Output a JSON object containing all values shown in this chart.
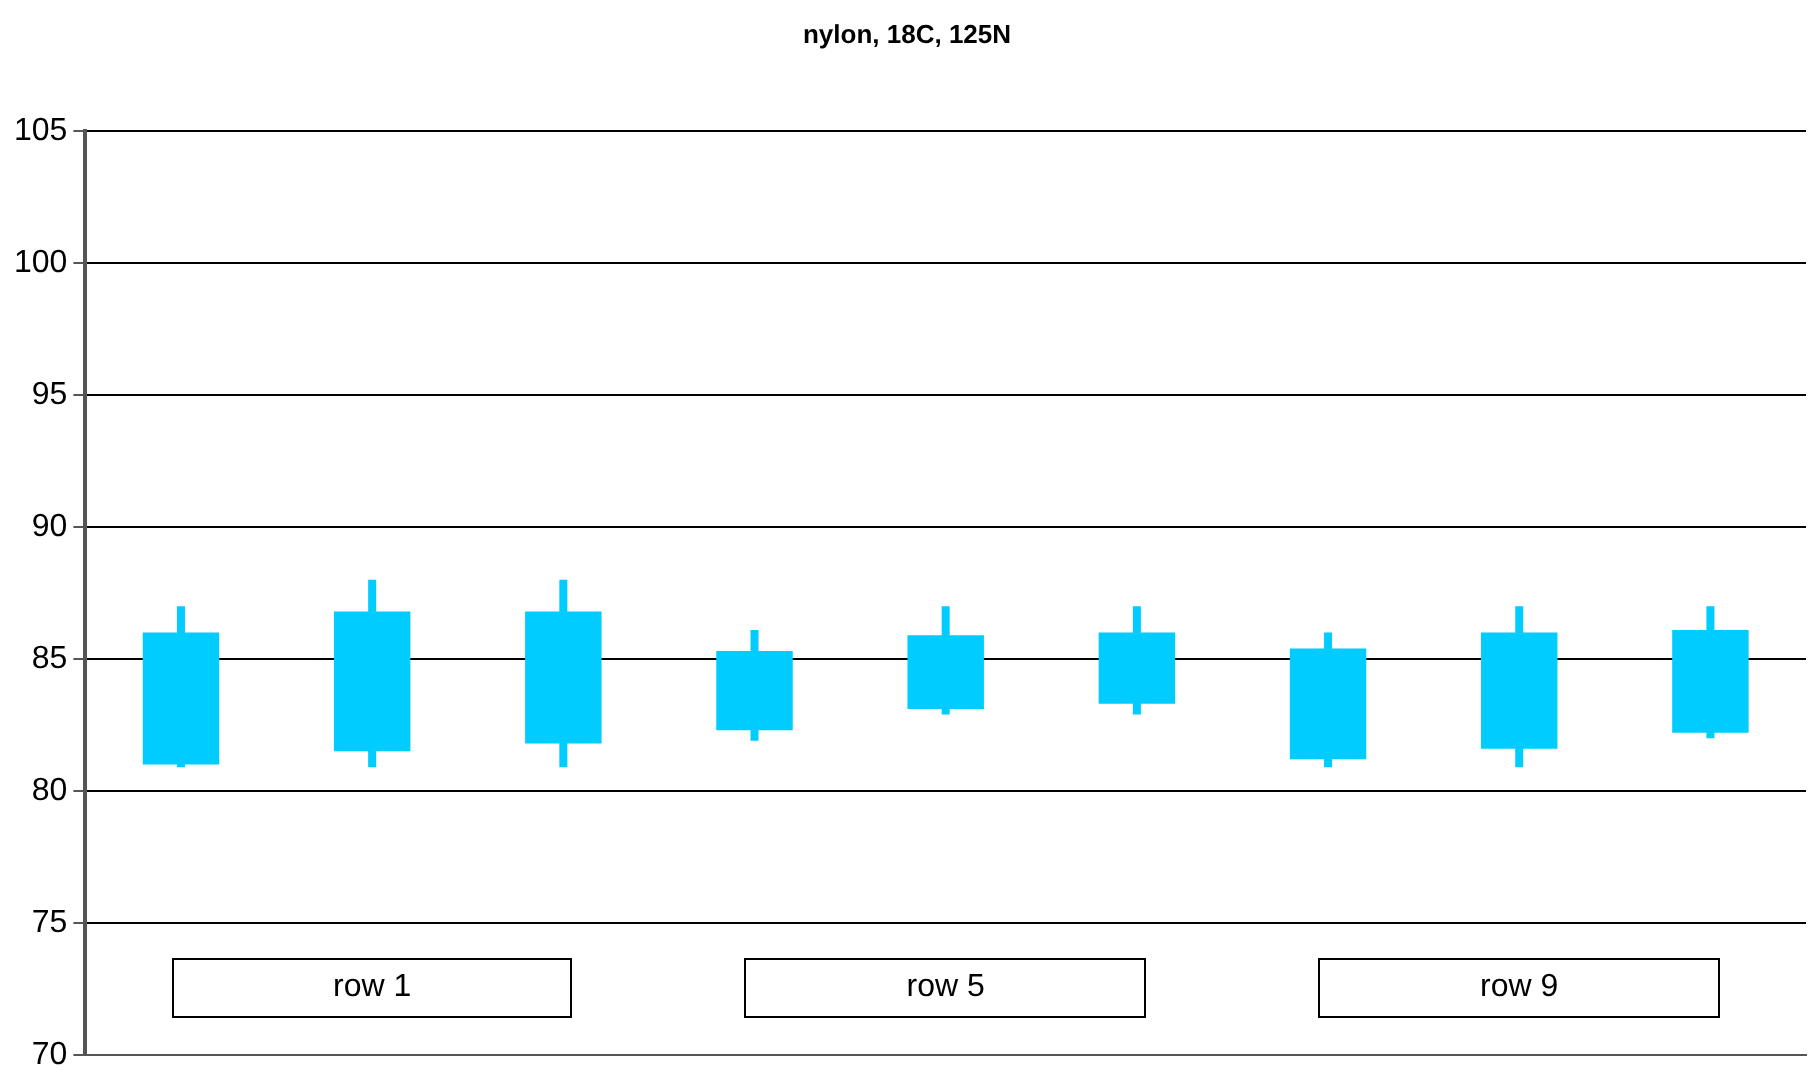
{
  "chart_data": {
    "type": "candlestick",
    "title": "nylon, 18C, 125N",
    "categories": [
      null,
      null,
      null,
      null,
      null,
      null,
      null,
      null,
      null
    ],
    "ohlc": [
      [
        81.0,
        87.0,
        80.9,
        86.0
      ],
      [
        81.5,
        88.0,
        80.9,
        86.8
      ],
      [
        81.8,
        88.0,
        80.9,
        86.8
      ],
      [
        82.3,
        86.1,
        81.9,
        85.3
      ],
      [
        83.1,
        87.0,
        82.9,
        85.9
      ],
      [
        83.3,
        87.0,
        82.9,
        86.0
      ],
      [
        81.2,
        86.0,
        80.9,
        85.4
      ],
      [
        81.6,
        87.0,
        80.9,
        86.0
      ],
      [
        82.2,
        87.0,
        82.0,
        86.1
      ]
    ],
    "color": "#00ccff",
    "ylim": [
      70,
      105
    ],
    "yticks": [
      70,
      75,
      80,
      85,
      90,
      95,
      100,
      105
    ],
    "grid": "y",
    "tick_labels": "y",
    "annotations": [
      "row 1",
      "row 5",
      "row 9"
    ]
  }
}
